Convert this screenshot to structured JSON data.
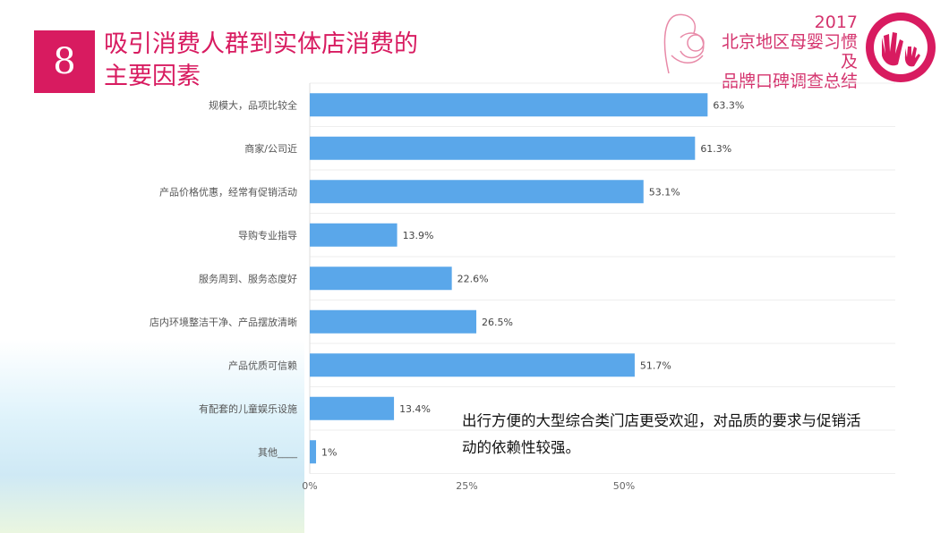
{
  "slide_number": "8",
  "title": "吸引消费人群到实体店消费的主要因素",
  "brand": {
    "year": "2017",
    "line1": "北京地区母婴习惯及",
    "line2": "品牌口碑调查总结"
  },
  "note": "出行方便的大型综合类门店更受欢迎，对品质的要求与促销活动的依赖性较强。",
  "colors": {
    "accent": "#d81b60",
    "bar": "#5aa7ea"
  },
  "chart_data": {
    "type": "bar",
    "orientation": "horizontal",
    "categories": [
      "规模大，品项比较全",
      "商家/公司近",
      "产品价格优惠，经常有促销活动",
      "导购专业指导",
      "服务周到、服务态度好",
      "店内环境整洁干净、产品摆放清晰",
      "产品优质可信赖",
      "有配套的儿童娱乐设施",
      "其他____"
    ],
    "values": [
      63.3,
      61.3,
      53.1,
      13.9,
      22.6,
      26.5,
      51.7,
      13.4,
      1
    ],
    "value_labels": [
      "63.3%",
      "61.3%",
      "53.1%",
      "13.9%",
      "22.6%",
      "26.5%",
      "51.7%",
      "13.4%",
      "1%"
    ],
    "x_ticks": [
      "0%",
      "25%",
      "50%"
    ],
    "tick_values": [
      0,
      25,
      50
    ],
    "xlim": [
      0,
      100
    ],
    "grid": true
  }
}
